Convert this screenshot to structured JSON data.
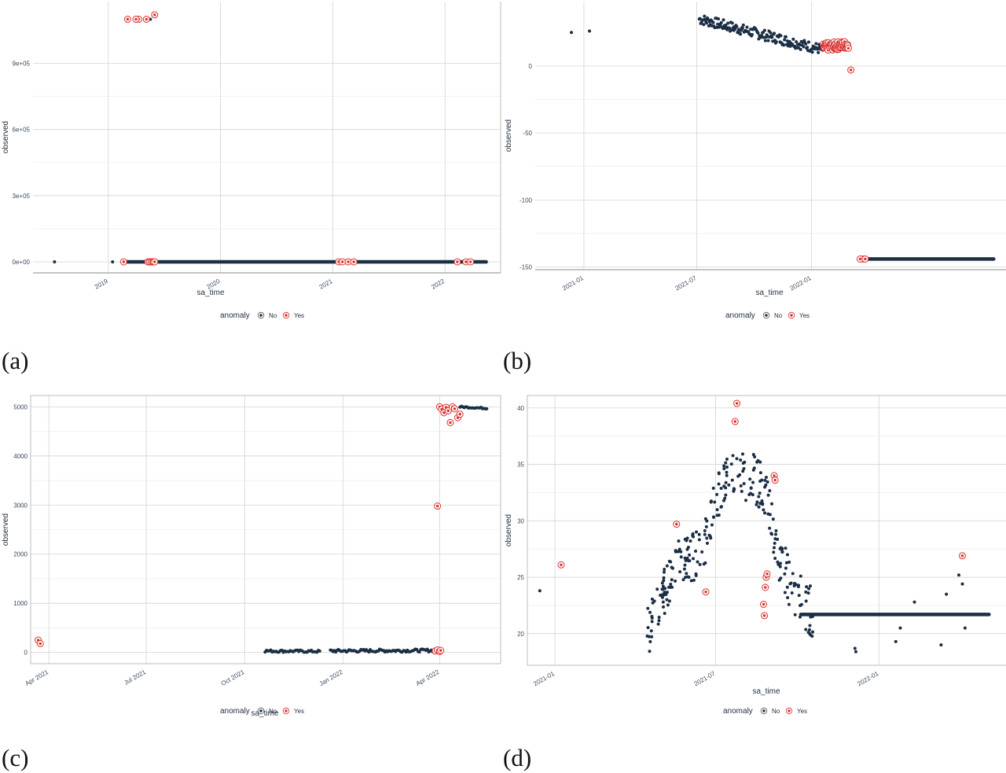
{
  "colors": {
    "normal": "#1c2e45",
    "anomaly": "#d9302c",
    "grid": "#d4d4d4",
    "frame": "#bdbdbd"
  },
  "panel_labels": [
    "(a)",
    "(b)",
    "(c)",
    "(d)"
  ],
  "chart_data": [
    {
      "type": "scatter",
      "xlabel": "sa_time",
      "ylabel": "observed",
      "x_ticks": [
        "2019",
        "2020",
        "2021",
        "2022"
      ],
      "y_ticks": [
        "0e+00",
        "3e+05",
        "6e+05",
        "9e+05"
      ],
      "legend": {
        "title": "anomaly",
        "entries": [
          "No",
          "Yes"
        ],
        "placement": "bottom"
      },
      "x_range": [
        "2018-05-01",
        "2022-07-01"
      ],
      "ylim": [
        -50000,
        1180000
      ],
      "series": [
        {
          "name": "No",
          "points": [
            [
              "2018-07-10",
              0
            ],
            [
              "2019-01-15",
              0
            ],
            [
              "2019-05-18",
              1100000
            ]
          ],
          "band": {
            "from": "2019-02-20",
            "to": "2022-05-15",
            "y": 0
          }
        },
        {
          "name": "Yes",
          "points": [
            [
              "2019-02-20",
              0
            ],
            [
              "2019-04-10",
              1100000
            ],
            [
              "2019-03-05",
              1100000
            ],
            [
              "2019-04-01",
              1100000
            ],
            [
              "2019-05-05",
              1100000
            ],
            [
              "2019-06-01",
              1120000
            ],
            [
              "2019-05-10",
              0
            ],
            [
              "2019-05-15",
              0
            ],
            [
              "2019-05-20",
              0
            ],
            [
              "2019-05-25",
              0
            ],
            [
              "2019-05-28",
              0
            ],
            [
              "2019-06-01",
              0
            ],
            [
              "2021-01-20",
              0
            ],
            [
              "2021-02-01",
              0
            ],
            [
              "2021-02-20",
              0
            ],
            [
              "2021-03-10",
              0
            ],
            [
              "2022-02-10",
              0
            ],
            [
              "2022-03-10",
              0
            ],
            [
              "2022-03-25",
              0
            ]
          ]
        }
      ]
    },
    {
      "type": "scatter",
      "xlabel": "sa_time",
      "ylabel": "observed",
      "x_ticks": [
        "2021-01",
        "2021-07",
        "2022-01"
      ],
      "y_ticks": [
        "0",
        "-50",
        "-100",
        "-150"
      ],
      "legend": {
        "title": "anomaly",
        "entries": [
          "No",
          "Yes"
        ],
        "placement": "bottom"
      },
      "x_range": [
        "2020-10-15",
        "2022-11-10"
      ],
      "ylim": [
        -152,
        48
      ],
      "series": [
        {
          "name": "No",
          "points": [
            [
              "2020-12-12",
              25
            ],
            [
              "2021-01-10",
              26
            ]
          ],
          "cluster": {
            "from": "2021-07-05",
            "to": "2022-01-20",
            "y_start": 35,
            "y_end": 12,
            "noise": 4,
            "count": 170
          },
          "band": {
            "from": "2022-03-20",
            "to": "2022-10-20",
            "y": -144
          }
        },
        {
          "name": "Yes",
          "points": [
            [
              "2022-03-05",
              -3
            ],
            [
              "2022-03-25",
              -144
            ],
            [
              "2022-03-20",
              -144
            ],
            [
              "2022-03-28",
              -144
            ]
          ],
          "cluster": {
            "from": "2022-01-20",
            "to": "2022-03-01",
            "y_start": 14,
            "y_end": 16,
            "noise": 3,
            "count": 60
          }
        }
      ]
    },
    {
      "type": "scatter",
      "xlabel": "sa_time",
      "ylabel": "observed",
      "x_ticks": [
        "Apr 2021",
        "Jul 2021",
        "Oct 2021",
        "Jan 2022",
        "Apr 2022"
      ],
      "y_ticks": [
        "0",
        "1000",
        "2000",
        "3000",
        "4000",
        "5000"
      ],
      "legend": {
        "title": "anomaly",
        "entries": [
          "No",
          "Yes"
        ],
        "placement": "bottom"
      },
      "x_range": [
        "2021-03-15",
        "2022-05-28"
      ],
      "ylim": [
        -230,
        5230
      ],
      "series": [
        {
          "name": "No",
          "points": [],
          "clusters": [
            {
              "from": "2021-10-20",
              "to": "2021-12-10",
              "y_start": 30,
              "y_end": 20,
              "noise": 25,
              "count": 40
            },
            {
              "from": "2021-12-20",
              "to": "2022-03-28",
              "y_start": 30,
              "y_end": 40,
              "noise": 30,
              "count": 80
            },
            {
              "from": "2022-04-20",
              "to": "2022-05-15",
              "y_start": 5000,
              "y_end": 4970,
              "noise": 15,
              "count": 20
            }
          ]
        },
        {
          "name": "Yes",
          "points": [
            [
              "2021-03-22",
              250
            ],
            [
              "2021-03-24",
              180
            ],
            [
              "2022-03-30",
              2980
            ],
            [
              "2022-04-01",
              5000
            ],
            [
              "2022-04-03",
              4950
            ],
            [
              "2022-04-05",
              4880
            ],
            [
              "2022-04-07",
              4990
            ],
            [
              "2022-04-09",
              4920
            ],
            [
              "2022-04-11",
              4680
            ],
            [
              "2022-04-13",
              5000
            ],
            [
              "2022-04-15",
              4960
            ],
            [
              "2022-04-18",
              4780
            ],
            [
              "2022-04-20",
              4850
            ],
            [
              "2022-03-28",
              30
            ],
            [
              "2022-03-30",
              50
            ],
            [
              "2022-04-01",
              20
            ],
            [
              "2022-04-02",
              40
            ]
          ]
        }
      ]
    },
    {
      "type": "scatter",
      "xlabel": "sa_time",
      "ylabel": "observed",
      "x_ticks": [
        "2021-01",
        "2021-07",
        "2022-01"
      ],
      "y_ticks": [
        "20",
        "25",
        "30",
        "35",
        "40"
      ],
      "legend": {
        "title": "anomaly",
        "entries": [
          "No",
          "Yes"
        ],
        "placement": "bottom"
      },
      "x_range": [
        "2020-12-01",
        "2022-05-25"
      ],
      "ylim": [
        17.2,
        41.1
      ],
      "series": [
        {
          "name": "No",
          "points": [
            [
              "2020-12-15",
              23.8
            ],
            [
              "2021-12-05",
              18.7
            ],
            [
              "2021-12-06",
              18.4
            ],
            [
              "2022-01-20",
              19.3
            ],
            [
              "2022-01-25",
              20.5
            ],
            [
              "2022-02-10",
              22.8
            ],
            [
              "2022-03-12",
              19.0
            ],
            [
              "2022-03-18",
              23.5
            ],
            [
              "2022-04-01",
              25.2
            ],
            [
              "2022-04-05",
              24.4
            ],
            [
              "2022-04-08",
              20.5
            ],
            [
              "2021-10-15",
              20.0
            ]
          ],
          "cluster_curve": {
            "from": "2021-04-15",
            "to": "2021-10-20",
            "count": 260,
            "curve": [
              [
                "2021-04-15",
                20
              ],
              [
                "2021-05-15",
                26
              ],
              [
                "2021-06-15",
                27
              ],
              [
                "2021-07-01",
                32
              ],
              [
                "2021-07-20",
                34
              ],
              [
                "2021-08-10",
                34
              ],
              [
                "2021-08-25",
                33
              ],
              [
                "2021-09-10",
                27
              ],
              [
                "2021-09-25",
                24
              ],
              [
                "2021-10-20",
                21.7
              ]
            ],
            "noise": 2.2
          },
          "band": {
            "from": "2021-10-05",
            "to": "2022-05-05",
            "y": 21.7
          }
        },
        {
          "name": "Yes",
          "points": [
            [
              "2021-01-08",
              26.1
            ],
            [
              "2021-05-18",
              29.7
            ],
            [
              "2021-06-20",
              23.7
            ],
            [
              "2021-07-25",
              40.4
            ],
            [
              "2021-07-23",
              38.8
            ],
            [
              "2021-08-24",
              22.6
            ],
            [
              "2021-08-25",
              21.6
            ],
            [
              "2021-08-26",
              24.1
            ],
            [
              "2021-08-27",
              25.0
            ],
            [
              "2021-08-28",
              25.3
            ],
            [
              "2021-09-05",
              34.0
            ],
            [
              "2021-09-06",
              33.6
            ],
            [
              "2022-04-05",
              26.9
            ]
          ]
        }
      ]
    }
  ]
}
